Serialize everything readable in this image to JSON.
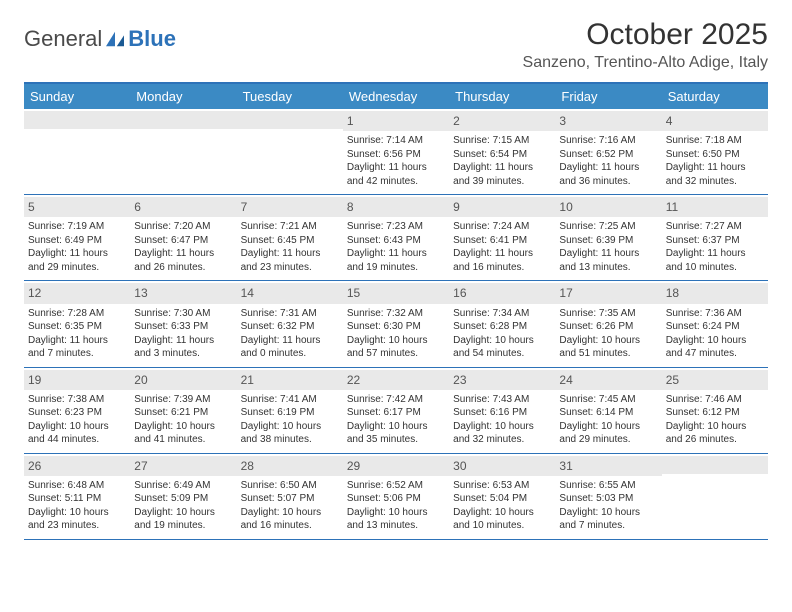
{
  "logo": {
    "text1": "General",
    "text2": "Blue"
  },
  "title": "October 2025",
  "location": "Sanzeno, Trentino-Alto Adige, Italy",
  "colors": {
    "header_bg": "#3b8ac4",
    "border": "#2d72b8",
    "daynum_bg": "#e9e9e9",
    "text": "#333333"
  },
  "dow": [
    "Sunday",
    "Monday",
    "Tuesday",
    "Wednesday",
    "Thursday",
    "Friday",
    "Saturday"
  ],
  "weeks": [
    [
      {
        "n": "",
        "sr": "",
        "ss": "",
        "dl": ""
      },
      {
        "n": "",
        "sr": "",
        "ss": "",
        "dl": ""
      },
      {
        "n": "",
        "sr": "",
        "ss": "",
        "dl": ""
      },
      {
        "n": "1",
        "sr": "Sunrise: 7:14 AM",
        "ss": "Sunset: 6:56 PM",
        "dl": "Daylight: 11 hours and 42 minutes."
      },
      {
        "n": "2",
        "sr": "Sunrise: 7:15 AM",
        "ss": "Sunset: 6:54 PM",
        "dl": "Daylight: 11 hours and 39 minutes."
      },
      {
        "n": "3",
        "sr": "Sunrise: 7:16 AM",
        "ss": "Sunset: 6:52 PM",
        "dl": "Daylight: 11 hours and 36 minutes."
      },
      {
        "n": "4",
        "sr": "Sunrise: 7:18 AM",
        "ss": "Sunset: 6:50 PM",
        "dl": "Daylight: 11 hours and 32 minutes."
      }
    ],
    [
      {
        "n": "5",
        "sr": "Sunrise: 7:19 AM",
        "ss": "Sunset: 6:49 PM",
        "dl": "Daylight: 11 hours and 29 minutes."
      },
      {
        "n": "6",
        "sr": "Sunrise: 7:20 AM",
        "ss": "Sunset: 6:47 PM",
        "dl": "Daylight: 11 hours and 26 minutes."
      },
      {
        "n": "7",
        "sr": "Sunrise: 7:21 AM",
        "ss": "Sunset: 6:45 PM",
        "dl": "Daylight: 11 hours and 23 minutes."
      },
      {
        "n": "8",
        "sr": "Sunrise: 7:23 AM",
        "ss": "Sunset: 6:43 PM",
        "dl": "Daylight: 11 hours and 19 minutes."
      },
      {
        "n": "9",
        "sr": "Sunrise: 7:24 AM",
        "ss": "Sunset: 6:41 PM",
        "dl": "Daylight: 11 hours and 16 minutes."
      },
      {
        "n": "10",
        "sr": "Sunrise: 7:25 AM",
        "ss": "Sunset: 6:39 PM",
        "dl": "Daylight: 11 hours and 13 minutes."
      },
      {
        "n": "11",
        "sr": "Sunrise: 7:27 AM",
        "ss": "Sunset: 6:37 PM",
        "dl": "Daylight: 11 hours and 10 minutes."
      }
    ],
    [
      {
        "n": "12",
        "sr": "Sunrise: 7:28 AM",
        "ss": "Sunset: 6:35 PM",
        "dl": "Daylight: 11 hours and 7 minutes."
      },
      {
        "n": "13",
        "sr": "Sunrise: 7:30 AM",
        "ss": "Sunset: 6:33 PM",
        "dl": "Daylight: 11 hours and 3 minutes."
      },
      {
        "n": "14",
        "sr": "Sunrise: 7:31 AM",
        "ss": "Sunset: 6:32 PM",
        "dl": "Daylight: 11 hours and 0 minutes."
      },
      {
        "n": "15",
        "sr": "Sunrise: 7:32 AM",
        "ss": "Sunset: 6:30 PM",
        "dl": "Daylight: 10 hours and 57 minutes."
      },
      {
        "n": "16",
        "sr": "Sunrise: 7:34 AM",
        "ss": "Sunset: 6:28 PM",
        "dl": "Daylight: 10 hours and 54 minutes."
      },
      {
        "n": "17",
        "sr": "Sunrise: 7:35 AM",
        "ss": "Sunset: 6:26 PM",
        "dl": "Daylight: 10 hours and 51 minutes."
      },
      {
        "n": "18",
        "sr": "Sunrise: 7:36 AM",
        "ss": "Sunset: 6:24 PM",
        "dl": "Daylight: 10 hours and 47 minutes."
      }
    ],
    [
      {
        "n": "19",
        "sr": "Sunrise: 7:38 AM",
        "ss": "Sunset: 6:23 PM",
        "dl": "Daylight: 10 hours and 44 minutes."
      },
      {
        "n": "20",
        "sr": "Sunrise: 7:39 AM",
        "ss": "Sunset: 6:21 PM",
        "dl": "Daylight: 10 hours and 41 minutes."
      },
      {
        "n": "21",
        "sr": "Sunrise: 7:41 AM",
        "ss": "Sunset: 6:19 PM",
        "dl": "Daylight: 10 hours and 38 minutes."
      },
      {
        "n": "22",
        "sr": "Sunrise: 7:42 AM",
        "ss": "Sunset: 6:17 PM",
        "dl": "Daylight: 10 hours and 35 minutes."
      },
      {
        "n": "23",
        "sr": "Sunrise: 7:43 AM",
        "ss": "Sunset: 6:16 PM",
        "dl": "Daylight: 10 hours and 32 minutes."
      },
      {
        "n": "24",
        "sr": "Sunrise: 7:45 AM",
        "ss": "Sunset: 6:14 PM",
        "dl": "Daylight: 10 hours and 29 minutes."
      },
      {
        "n": "25",
        "sr": "Sunrise: 7:46 AM",
        "ss": "Sunset: 6:12 PM",
        "dl": "Daylight: 10 hours and 26 minutes."
      }
    ],
    [
      {
        "n": "26",
        "sr": "Sunrise: 6:48 AM",
        "ss": "Sunset: 5:11 PM",
        "dl": "Daylight: 10 hours and 23 minutes."
      },
      {
        "n": "27",
        "sr": "Sunrise: 6:49 AM",
        "ss": "Sunset: 5:09 PM",
        "dl": "Daylight: 10 hours and 19 minutes."
      },
      {
        "n": "28",
        "sr": "Sunrise: 6:50 AM",
        "ss": "Sunset: 5:07 PM",
        "dl": "Daylight: 10 hours and 16 minutes."
      },
      {
        "n": "29",
        "sr": "Sunrise: 6:52 AM",
        "ss": "Sunset: 5:06 PM",
        "dl": "Daylight: 10 hours and 13 minutes."
      },
      {
        "n": "30",
        "sr": "Sunrise: 6:53 AM",
        "ss": "Sunset: 5:04 PM",
        "dl": "Daylight: 10 hours and 10 minutes."
      },
      {
        "n": "31",
        "sr": "Sunrise: 6:55 AM",
        "ss": "Sunset: 5:03 PM",
        "dl": "Daylight: 10 hours and 7 minutes."
      },
      {
        "n": "",
        "sr": "",
        "ss": "",
        "dl": ""
      }
    ]
  ]
}
